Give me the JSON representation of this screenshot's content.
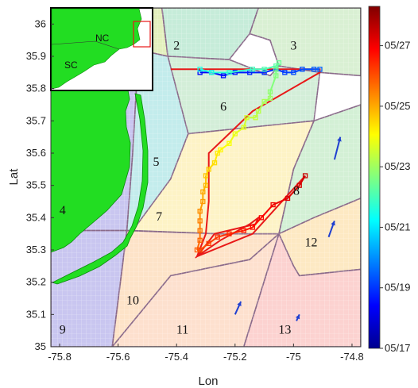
{
  "chart_data": {
    "type": "map",
    "xlabel": "Lon",
    "ylabel": "Lat",
    "xlim": [
      -75.83,
      -74.77
    ],
    "ylim": [
      35.0,
      36.05
    ],
    "x_ticks": [
      -75.8,
      -75.6,
      -75.4,
      -75.2,
      -75.0,
      -74.8
    ],
    "x_tick_labels": [
      "-75.8",
      "-75.6",
      "-75.4",
      "-75.2",
      "-75",
      "-74.8"
    ],
    "y_ticks": [
      35.0,
      35.1,
      35.2,
      35.3,
      35.4,
      35.5,
      35.6,
      35.7,
      35.8,
      35.9,
      36.0
    ],
    "y_tick_labels": [
      "35",
      "35.1",
      "35.2",
      "35.3",
      "35.4",
      "35.5",
      "35.6",
      "35.7",
      "35.8",
      "35.9",
      "36"
    ],
    "grid": false,
    "regions": [
      {
        "id": "1",
        "label_at": [
          -75.5,
          35.93
        ],
        "color": "#e3f0bd",
        "polygon": [
          [
            -75.55,
            36.05
          ],
          [
            -75.45,
            36.05
          ],
          [
            -75.43,
            35.9
          ],
          [
            -75.53,
            35.92
          ]
        ]
      },
      {
        "id": "2",
        "label_at": [
          -75.4,
          35.93
        ],
        "color": "#c6ecd9",
        "polygon": [
          [
            -75.45,
            36.05
          ],
          [
            -75.12,
            36.05
          ],
          [
            -75.15,
            35.97
          ],
          [
            -75.22,
            35.89
          ],
          [
            -75.43,
            35.9
          ]
        ]
      },
      {
        "id": "3",
        "label_at": [
          -75.0,
          35.93
        ],
        "color": "#d9f0d3",
        "polygon": [
          [
            -75.12,
            36.05
          ],
          [
            -74.77,
            36.05
          ],
          [
            -74.77,
            35.84
          ],
          [
            -74.91,
            35.85
          ],
          [
            -75.05,
            35.87
          ],
          [
            -75.08,
            35.95
          ],
          [
            -75.15,
            35.97
          ]
        ]
      },
      {
        "id": "4",
        "label_at": [
          -75.79,
          35.42
        ],
        "color": "#c9c6f0",
        "polygon": [
          [
            -75.83,
            35.87
          ],
          [
            -75.53,
            35.92
          ],
          [
            -75.55,
            35.6
          ],
          [
            -75.57,
            35.36
          ],
          [
            -75.83,
            35.36
          ]
        ]
      },
      {
        "id": "5",
        "label_at": [
          -75.47,
          35.57
        ],
        "color": "#c3ecec",
        "polygon": [
          [
            -75.53,
            35.92
          ],
          [
            -75.43,
            35.9
          ],
          [
            -75.27,
            35.8
          ],
          [
            -75.3,
            35.77
          ],
          [
            -75.36,
            35.66
          ],
          [
            -75.42,
            35.52
          ],
          [
            -75.53,
            35.36
          ],
          [
            -75.57,
            35.36
          ],
          [
            -75.55,
            35.6
          ]
        ]
      },
      {
        "id": "6",
        "label_at": [
          -75.24,
          35.74
        ],
        "color": "#d3eed8",
        "polygon": [
          [
            -75.43,
            35.9
          ],
          [
            -75.22,
            35.89
          ],
          [
            -75.08,
            35.84
          ],
          [
            -75.05,
            35.87
          ],
          [
            -74.91,
            35.85
          ],
          [
            -74.93,
            35.7
          ],
          [
            -75.15,
            35.68
          ],
          [
            -75.36,
            35.66
          ]
        ]
      },
      {
        "id": "7",
        "label_at": [
          -75.46,
          35.4
        ],
        "color": "#fdf3c6",
        "polygon": [
          [
            -75.36,
            35.66
          ],
          [
            -75.15,
            35.68
          ],
          [
            -74.93,
            35.7
          ],
          [
            -75.0,
            35.55
          ],
          [
            -75.05,
            35.35
          ],
          [
            -75.26,
            35.35
          ],
          [
            -75.55,
            35.36
          ],
          [
            -75.42,
            35.52
          ]
        ]
      },
      {
        "id": "8",
        "label_at": [
          -74.99,
          35.48
        ],
        "color": "#d3f0d5",
        "polygon": [
          [
            -74.93,
            35.7
          ],
          [
            -74.77,
            35.75
          ],
          [
            -74.77,
            35.46
          ],
          [
            -74.93,
            35.4
          ],
          [
            -75.05,
            35.35
          ],
          [
            -75.0,
            35.55
          ]
        ]
      },
      {
        "id": "9",
        "label_at": [
          -75.79,
          35.05
        ],
        "color": "#c9c6f0",
        "polygon": [
          [
            -75.83,
            35.36
          ],
          [
            -75.57,
            35.36
          ],
          [
            -75.62,
            35.0
          ],
          [
            -75.83,
            35.0
          ]
        ]
      },
      {
        "id": "10",
        "label_at": [
          -75.55,
          35.14
        ],
        "color": "#fde3c8",
        "polygon": [
          [
            -75.57,
            35.36
          ],
          [
            -75.26,
            35.35
          ],
          [
            -75.05,
            35.35
          ],
          [
            -75.15,
            35.27
          ],
          [
            -75.42,
            35.22
          ],
          [
            -75.62,
            35.0
          ]
        ]
      },
      {
        "id": "11",
        "label_at": [
          -75.38,
          35.05
        ],
        "color": "#fde0ce",
        "polygon": [
          [
            -75.62,
            35.0
          ],
          [
            -75.42,
            35.22
          ],
          [
            -75.15,
            35.27
          ],
          [
            -75.05,
            35.35
          ],
          [
            -75.17,
            35.0
          ]
        ]
      },
      {
        "id": "12",
        "label_at": [
          -74.94,
          35.32
        ],
        "color": "#fde9c3",
        "polygon": [
          [
            -75.05,
            35.35
          ],
          [
            -74.93,
            35.4
          ],
          [
            -74.77,
            35.46
          ],
          [
            -74.77,
            35.24
          ],
          [
            -74.98,
            35.22
          ],
          [
            -75.0,
            35.25
          ]
        ]
      },
      {
        "id": "13",
        "label_at": [
          -75.03,
          35.05
        ],
        "color": "#fcd2d0",
        "polygon": [
          [
            -75.17,
            35.0
          ],
          [
            -75.05,
            35.35
          ],
          [
            -75.0,
            35.25
          ],
          [
            -74.98,
            35.22
          ],
          [
            -74.77,
            35.24
          ],
          [
            -74.77,
            35.0
          ]
        ]
      }
    ],
    "red_line": [
      [
        -75.42,
        35.86
      ],
      [
        -74.91,
        35.86
      ],
      [
        -74.91,
        35.85
      ],
      [
        -75.14,
        35.73
      ],
      [
        -75.29,
        35.6
      ],
      [
        -75.29,
        35.45
      ],
      [
        -75.3,
        35.35
      ],
      [
        -75.33,
        35.28
      ],
      [
        -75.25,
        35.33
      ],
      [
        -75.15,
        35.38
      ],
      [
        -75.12,
        35.4
      ],
      [
        -75.13,
        35.38
      ],
      [
        -75.27,
        35.35
      ],
      [
        -75.33,
        35.28
      ],
      [
        -75.14,
        35.35
      ],
      [
        -74.96,
        35.53
      ]
    ],
    "track": {
      "points": [
        [
          -75.32,
          35.86
        ],
        [
          -75.28,
          35.85
        ],
        [
          -75.22,
          35.85
        ],
        [
          -75.14,
          35.86
        ],
        [
          -75.1,
          35.86
        ],
        [
          -75.06,
          35.87
        ],
        [
          -75.05,
          35.88
        ],
        [
          -75.06,
          35.86
        ],
        [
          -75.06,
          35.84
        ],
        [
          -75.08,
          35.79
        ],
        [
          -75.08,
          35.77
        ],
        [
          -75.1,
          35.76
        ],
        [
          -75.12,
          35.73
        ],
        [
          -75.13,
          35.71
        ],
        [
          -75.16,
          35.71
        ],
        [
          -75.17,
          35.68
        ],
        [
          -75.2,
          35.66
        ],
        [
          -75.22,
          35.63
        ],
        [
          -75.25,
          35.61
        ],
        [
          -75.26,
          35.6
        ],
        [
          -75.27,
          35.57
        ],
        [
          -75.29,
          35.55
        ],
        [
          -75.3,
          35.53
        ],
        [
          -75.3,
          35.5
        ],
        [
          -75.31,
          35.48
        ],
        [
          -75.31,
          35.45
        ],
        [
          -75.32,
          35.42
        ],
        [
          -75.32,
          35.39
        ],
        [
          -75.32,
          35.36
        ],
        [
          -75.32,
          35.33
        ],
        [
          -75.33,
          35.3
        ],
        [
          -75.32,
          35.3
        ],
        [
          -75.29,
          35.32
        ],
        [
          -75.26,
          35.34
        ],
        [
          -75.22,
          35.35
        ],
        [
          -75.17,
          35.36
        ],
        [
          -75.14,
          35.37
        ],
        [
          -75.11,
          35.4
        ],
        [
          -75.07,
          35.44
        ],
        [
          -75.02,
          35.46
        ],
        [
          -74.98,
          35.5
        ],
        [
          -74.96,
          35.53
        ]
      ],
      "date_range": [
        "05/17",
        "05/27"
      ]
    },
    "track_top": {
      "points": [
        [
          -75.32,
          35.85
        ],
        [
          -75.28,
          35.85
        ],
        [
          -75.24,
          35.84
        ],
        [
          -75.2,
          35.85
        ],
        [
          -75.15,
          35.85
        ],
        [
          -75.1,
          35.85
        ],
        [
          -75.06,
          35.86
        ],
        [
          -75.03,
          35.85
        ],
        [
          -75.0,
          35.85
        ],
        [
          -74.97,
          35.86
        ],
        [
          -74.93,
          35.86
        ],
        [
          -74.91,
          35.86
        ]
      ]
    },
    "arrows": [
      {
        "from": [
          -74.86,
          35.58
        ],
        "to": [
          -74.84,
          35.65
        ]
      },
      {
        "from": [
          -74.88,
          35.34
        ],
        "to": [
          -74.86,
          35.39
        ]
      },
      {
        "from": [
          -75.2,
          35.1
        ],
        "to": [
          -75.18,
          35.14
        ]
      },
      {
        "from": [
          -74.99,
          35.08
        ],
        "to": [
          -74.98,
          35.1
        ]
      }
    ],
    "colorbar": {
      "range": [
        17.0,
        28.3
      ],
      "ticks": [
        17,
        19,
        21,
        23,
        25,
        27
      ],
      "tick_labels": [
        "05/17",
        "05/19",
        "05/21",
        "05/23",
        "05/25",
        "05/27"
      ]
    },
    "inset": {
      "labels": [
        "NC",
        "SC"
      ]
    }
  }
}
